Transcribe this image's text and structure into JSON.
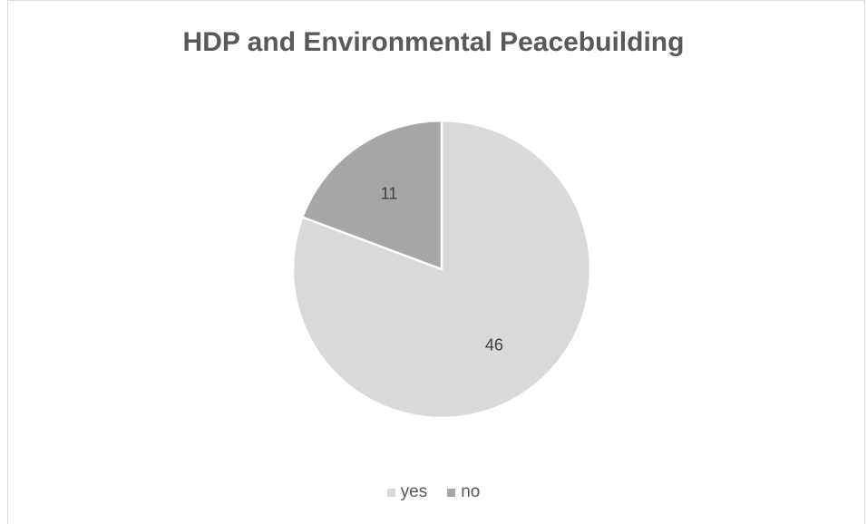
{
  "chart_data": {
    "type": "pie",
    "title": "HDP and Environmental Peacebuilding",
    "categories": [
      "yes",
      "no"
    ],
    "values": [
      46,
      11
    ],
    "data_labels": [
      "46",
      "11"
    ],
    "colors": [
      "#d9d9d9",
      "#a6a6a6"
    ],
    "legend_position": "bottom"
  }
}
